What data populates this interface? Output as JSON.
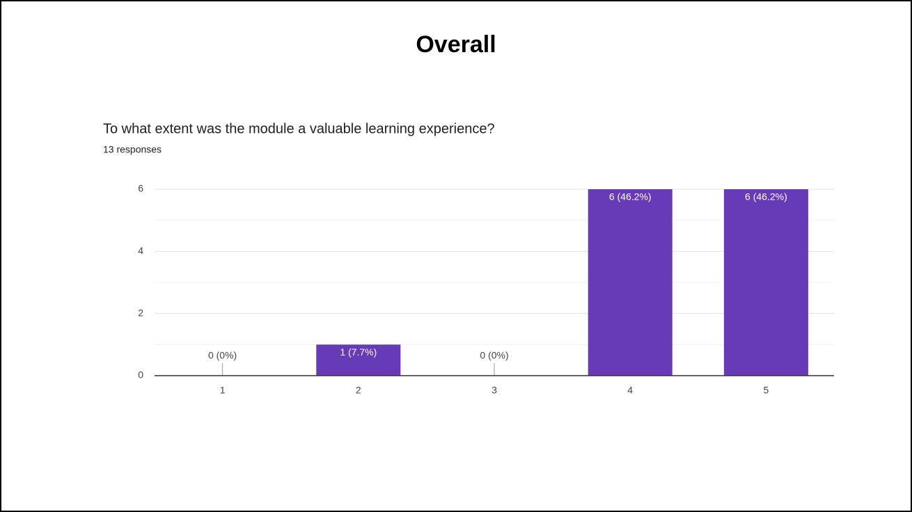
{
  "page_title": "Overall",
  "chart_data": {
    "type": "bar",
    "title": "To what extent was the module a valuable learning experience?",
    "subtitle": "13 responses",
    "categories": [
      "1",
      "2",
      "3",
      "4",
      "5"
    ],
    "values": [
      0,
      1,
      0,
      6,
      6
    ],
    "value_labels": [
      "0 (0%)",
      "1 (7.7%)",
      "0 (0%)",
      "6 (46.2%)",
      "6 (46.2%)"
    ],
    "color": "#673ab7",
    "ylim": [
      0,
      6
    ],
    "yticks": [
      0,
      2,
      4,
      6
    ],
    "minor_yticks": [
      1,
      3,
      5
    ],
    "grid": true
  }
}
